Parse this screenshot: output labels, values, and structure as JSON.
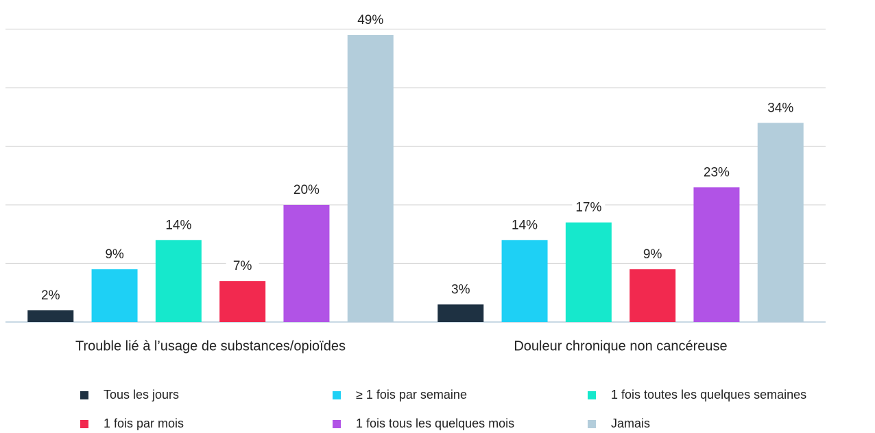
{
  "chart_data": {
    "type": "bar",
    "categories": [
      "Trouble lié à l’usage de substances/opioïdes",
      "Douleur chronique non cancéreuse"
    ],
    "series": [
      {
        "name": "Tous les jours",
        "color": "#1e3142",
        "values": [
          2,
          3
        ],
        "value_labels": [
          "2%",
          "3%"
        ]
      },
      {
        "name": "≥ 1 fois par semaine",
        "color": "#1ed0f5",
        "values": [
          9,
          14
        ],
        "value_labels": [
          "9%",
          "14%"
        ]
      },
      {
        "name": "1 fois toutes les quelques semaines",
        "color": "#16e8cc",
        "values": [
          14,
          17
        ],
        "value_labels": [
          "14%",
          "17%"
        ]
      },
      {
        "name": "1 fois par mois",
        "color": "#f2294f",
        "values": [
          7,
          9
        ],
        "value_labels": [
          "7%",
          "9%"
        ]
      },
      {
        "name": "1 fois tous les quelques mois",
        "color": "#b153e6",
        "values": [
          20,
          23
        ],
        "value_labels": [
          "20%",
          "23%"
        ]
      },
      {
        "name": "Jamais",
        "color": "#b3cddb",
        "values": [
          49,
          34
        ],
        "value_labels": [
          "49%",
          "34%"
        ]
      }
    ],
    "ylim": [
      0,
      50
    ],
    "yticks": [
      0,
      10,
      20,
      30,
      40,
      50
    ],
    "grid": true
  }
}
